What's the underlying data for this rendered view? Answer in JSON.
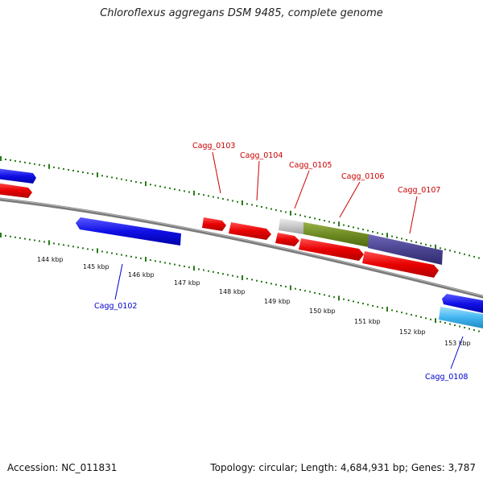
{
  "title": "Chloroflexus aggregans DSM 9485, complete genome",
  "footer": {
    "accession": "Accession: NC_011831",
    "summary": "Topology: circular; Length: 4,684,931 bp; Genes: 3,787"
  },
  "colors": {
    "backbone": "#888888",
    "tick": "#2a7a1a",
    "forward_gene": "#1010e0",
    "reverse_gene": "#e00000",
    "label_forward": "#0000cc",
    "label_reverse": "#cc0000",
    "olive": "#6e8a22",
    "slate": "#4a4490",
    "grey": "#c8c8c8",
    "cyan": "#40b4f0"
  },
  "ticks": [
    "144 kbp",
    "145 kbp",
    "146 kbp",
    "147 kbp",
    "148 kbp",
    "149 kbp",
    "150 kbp",
    "151 kbp",
    "152 kbp",
    "153 kbp"
  ],
  "labels": {
    "g0102": "Cagg_0102",
    "g0103": "Cagg_0103",
    "g0104": "Cagg_0104",
    "g0105": "Cagg_0105",
    "g0106": "Cagg_0106",
    "g0107": "Cagg_0107",
    "g0108": "Cagg_0108"
  }
}
